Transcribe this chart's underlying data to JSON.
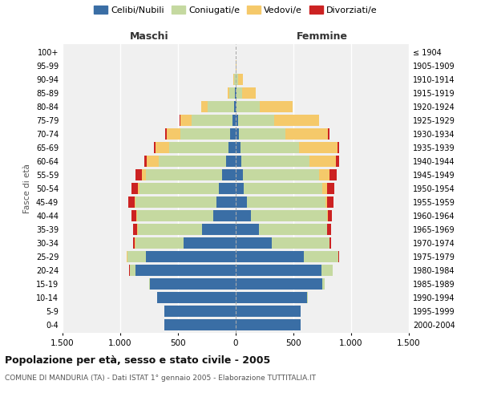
{
  "age_groups": [
    "0-4",
    "5-9",
    "10-14",
    "15-19",
    "20-24",
    "25-29",
    "30-34",
    "35-39",
    "40-44",
    "45-49",
    "50-54",
    "55-59",
    "60-64",
    "65-69",
    "70-74",
    "75-79",
    "80-84",
    "85-89",
    "90-94",
    "95-99",
    "100+"
  ],
  "birth_years": [
    "2000-2004",
    "1995-1999",
    "1990-1994",
    "1985-1989",
    "1980-1984",
    "1975-1979",
    "1970-1974",
    "1965-1969",
    "1960-1964",
    "1955-1959",
    "1950-1954",
    "1945-1949",
    "1940-1944",
    "1935-1939",
    "1930-1934",
    "1925-1929",
    "1920-1924",
    "1915-1919",
    "1910-1914",
    "1905-1909",
    "≤ 1904"
  ],
  "males": {
    "celibi": [
      620,
      620,
      680,
      740,
      870,
      780,
      450,
      290,
      195,
      170,
      145,
      120,
      80,
      65,
      50,
      30,
      15,
      5,
      2,
      0,
      0
    ],
    "coniugati": [
      0,
      0,
      2,
      10,
      50,
      160,
      420,
      560,
      660,
      700,
      690,
      660,
      590,
      510,
      430,
      350,
      230,
      50,
      15,
      2,
      0
    ],
    "vedovi": [
      0,
      0,
      0,
      0,
      0,
      1,
      2,
      2,
      3,
      5,
      10,
      30,
      100,
      120,
      120,
      100,
      55,
      15,
      5,
      0,
      0
    ],
    "divorziati": [
      0,
      0,
      0,
      0,
      2,
      5,
      15,
      35,
      45,
      55,
      55,
      55,
      25,
      10,
      8,
      5,
      2,
      0,
      0,
      0,
      0
    ]
  },
  "females": {
    "nubili": [
      560,
      560,
      620,
      750,
      740,
      590,
      310,
      200,
      130,
      100,
      70,
      60,
      50,
      40,
      30,
      20,
      10,
      5,
      2,
      0,
      0
    ],
    "coniugate": [
      0,
      0,
      2,
      20,
      100,
      300,
      500,
      590,
      660,
      680,
      680,
      660,
      590,
      510,
      400,
      310,
      200,
      50,
      18,
      2,
      0
    ],
    "vedove": [
      0,
      0,
      0,
      0,
      1,
      2,
      3,
      5,
      8,
      15,
      40,
      90,
      230,
      330,
      370,
      390,
      280,
      120,
      40,
      5,
      0
    ],
    "divorziate": [
      0,
      0,
      0,
      0,
      2,
      5,
      15,
      30,
      35,
      55,
      65,
      65,
      25,
      15,
      10,
      5,
      2,
      0,
      0,
      0,
      0
    ]
  },
  "color_celibi": "#3a6ea5",
  "color_coniugati": "#c5d9a0",
  "color_vedovi": "#f5c96a",
  "color_divorziati": "#cc2222",
  "title": "Popolazione per età, sesso e stato civile - 2005",
  "subtitle": "COMUNE DI MANDURIA (TA) - Dati ISTAT 1° gennaio 2005 - Elaborazione TUTTITALIA.IT",
  "xlabel_left": "Maschi",
  "xlabel_right": "Femmine",
  "ylabel_left": "Fasce di età",
  "xlim": 1500,
  "bg_color": "#ffffff",
  "plot_bg": "#f0f0f0",
  "grid_color": "#ffffff"
}
